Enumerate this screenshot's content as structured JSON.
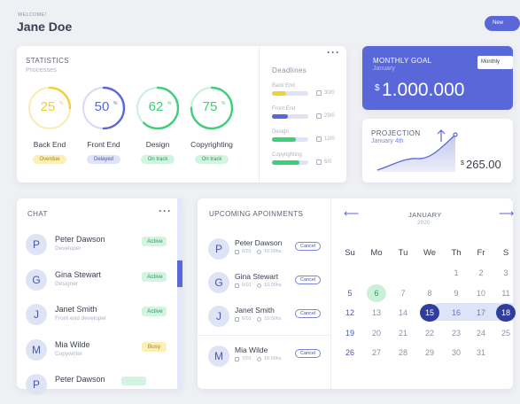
{
  "header": {
    "welcome": "WELCOME!",
    "name": "Jane Doe",
    "new_button": "New"
  },
  "statistics": {
    "title": "STATISTICS",
    "subtitle": "Processes",
    "rings": [
      {
        "value": "25",
        "unit": "%",
        "label": "Back End",
        "status": "Overdue",
        "percent": 25,
        "color": "#f2cf3b",
        "track": "#f7ecb3",
        "status_bg": "#fbf1b8",
        "status_fg": "#a08620"
      },
      {
        "value": "50",
        "unit": "%",
        "label": "Front End",
        "status": "Delayed",
        "percent": 50,
        "color": "#5a67d8",
        "track": "#d6daf4",
        "status_bg": "#dfe3f7",
        "status_fg": "#4a57a8"
      },
      {
        "value": "62",
        "unit": "%",
        "label": "Design",
        "status": "On track",
        "percent": 62,
        "color": "#3ecf7a",
        "track": "#c9f0d9",
        "status_bg": "#d4f4e2",
        "status_fg": "#2f9a5c"
      },
      {
        "value": "75",
        "unit": "%",
        "label": "Copyrighting",
        "status": "On track",
        "percent": 75,
        "color": "#3ecf7a",
        "track": "#c9f0d9",
        "status_bg": "#d4f4e2",
        "status_fg": "#2f9a5c"
      }
    ],
    "deadlines": {
      "title": "Deadlines",
      "items": [
        {
          "label": "Back End",
          "date": "30/0",
          "percent": 40,
          "color": "#f2cf3b"
        },
        {
          "label": "Front End",
          "date": "29/0",
          "percent": 45,
          "color": "#5a67d8"
        },
        {
          "label": "Design",
          "date": "12/0",
          "percent": 65,
          "color": "#3ecf7a"
        },
        {
          "label": "Copyrighting",
          "date": "6/0",
          "percent": 75,
          "color": "#3ecf7a"
        }
      ]
    }
  },
  "monthly_goal": {
    "title": "MONTHLY GOAL",
    "subtitle": "January",
    "currency": "$",
    "amount": "1.000.000",
    "dropdown": "Monthly"
  },
  "projection": {
    "title": "PROJECTION",
    "subtitle": "January 4th",
    "currency": "$",
    "amount": "265.00"
  },
  "chat": {
    "title": "CHAT",
    "contacts": [
      {
        "initial": "P",
        "name": "Peter Dawson",
        "role": "Developer",
        "status": "Active",
        "status_bg": "#d4f4e2",
        "status_fg": "#2f9a5c"
      },
      {
        "initial": "G",
        "name": "Gina Stewart",
        "role": "Designer",
        "status": "Active",
        "status_bg": "#d4f4e2",
        "status_fg": "#2f9a5c"
      },
      {
        "initial": "J",
        "name": "Janet Smith",
        "role": "Front end developer",
        "status": "Active",
        "status_bg": "#d4f4e2",
        "status_fg": "#2f9a5c"
      },
      {
        "initial": "M",
        "name": "Mia Wilde",
        "role": "Copywriter",
        "status": "Busy",
        "status_bg": "#fbf1b8",
        "status_fg": "#a08620"
      },
      {
        "initial": "P",
        "name": "Peter Dawson",
        "role": "",
        "status": "",
        "status_bg": "#d4f4e2",
        "status_fg": "#2f9a5c"
      }
    ]
  },
  "appointments": {
    "title": "UPCOMING APOINMENTS",
    "cancel_label": "Cancel",
    "items": [
      {
        "initial": "P",
        "name": "Peter Dawson",
        "date": "6/01",
        "time": "10:00hs"
      },
      {
        "initial": "G",
        "name": "Gina Stewart",
        "date": "6/01",
        "time": "10:00hs"
      },
      {
        "initial": "J",
        "name": "Janet Smith",
        "date": "6/01",
        "time": "10:00hs"
      },
      {
        "initial": "M",
        "name": "Mia Wilde",
        "date": "7/01",
        "time": "15:00hs"
      }
    ]
  },
  "calendar": {
    "month": "JANUARY",
    "year": "2020",
    "weekdays": [
      "Su",
      "Mo",
      "Tu",
      "We",
      "Th",
      "Fr",
      "S"
    ],
    "weeks": [
      [
        "",
        "",
        "",
        "",
        "1",
        "2",
        "3"
      ],
      [
        "5",
        "6",
        "7",
        "8",
        "9",
        "10",
        "11"
      ],
      [
        "12",
        "13",
        "14",
        "15",
        "16",
        "17",
        "18"
      ],
      [
        "19",
        "20",
        "21",
        "22",
        "23",
        "24",
        "25"
      ],
      [
        "26",
        "27",
        "28",
        "29",
        "30",
        "31",
        ""
      ]
    ]
  }
}
